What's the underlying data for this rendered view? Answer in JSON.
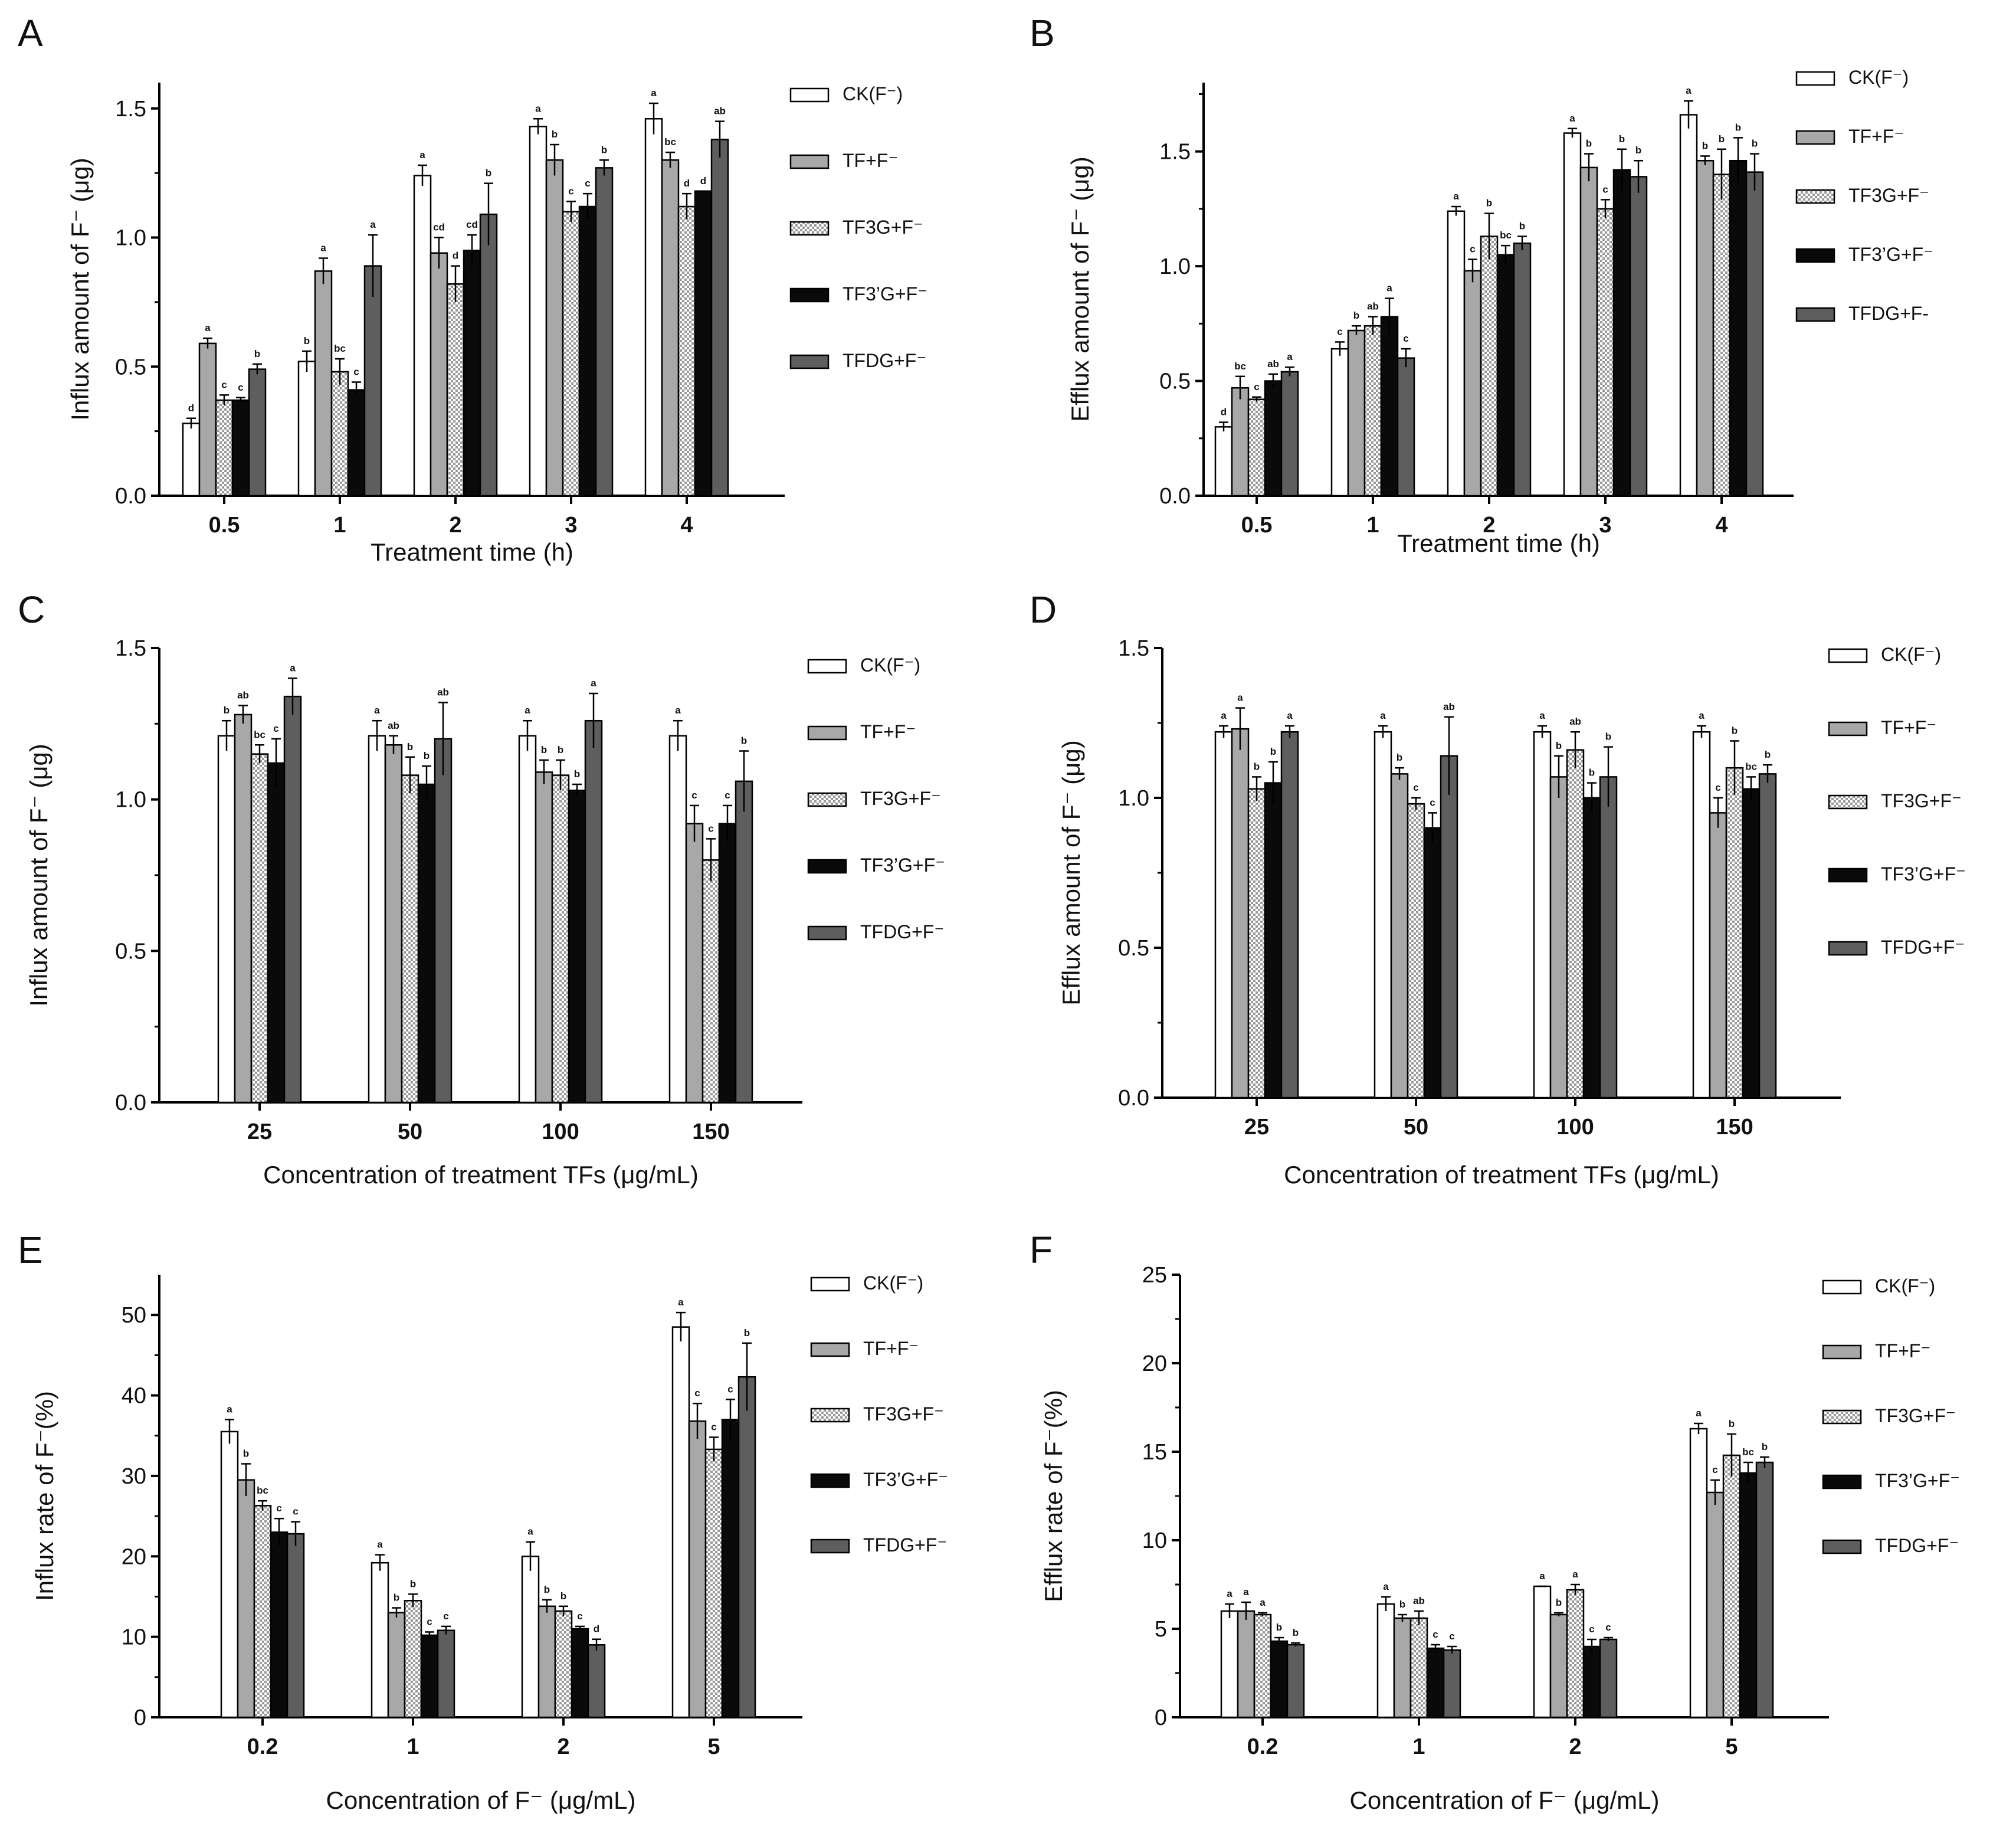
{
  "figure": {
    "colors": {
      "ck": "#ffffff",
      "tf": "#a8a8a8",
      "tf3g": "#dcdcdc",
      "tf3pg": "#0a0a0a",
      "tfdg": "#5e5e5e",
      "axis": "#000000"
    }
  },
  "chart_data": [
    {
      "panel": "A",
      "type": "bar",
      "ylabel": "Influx amount of F⁻ (μg)",
      "xlabel": "Treatment time (h)",
      "categories": [
        "0.5",
        "1",
        "2",
        "3",
        "4"
      ],
      "ylim": [
        0,
        1.6
      ],
      "yticks": [
        0,
        0.5,
        1,
        1.5
      ],
      "ytick_labels": [
        "0.0",
        "0.5",
        "1.0",
        "1.5"
      ],
      "series": [
        {
          "name": "CK(F⁻)",
          "key": "ck",
          "values": [
            0.28,
            0.52,
            1.24,
            1.43,
            1.46
          ],
          "errors": [
            0.02,
            0.04,
            0.04,
            0.03,
            0.06
          ],
          "sig": [
            "d",
            "b",
            "a",
            "a",
            "a"
          ]
        },
        {
          "name": "TF+F⁻",
          "key": "tf",
          "values": [
            0.59,
            0.87,
            0.94,
            1.3,
            1.3
          ],
          "errors": [
            0.02,
            0.05,
            0.06,
            0.06,
            0.03
          ],
          "sig": [
            "a",
            "a",
            "cd",
            "b",
            "bc"
          ]
        },
        {
          "name": "TF3G+F⁻",
          "key": "tf3g",
          "values": [
            0.37,
            0.48,
            0.82,
            1.1,
            1.12
          ],
          "errors": [
            0.02,
            0.05,
            0.07,
            0.04,
            0.05
          ],
          "sig": [
            "c",
            "bc",
            "d",
            "c",
            "d"
          ]
        },
        {
          "name": "TF3’G+F⁻",
          "key": "tf3pg",
          "values": [
            0.37,
            0.41,
            0.95,
            1.12,
            1.18
          ],
          "errors": [
            0.01,
            0.03,
            0.06,
            0.05,
            0.0
          ],
          "sig": [
            "c",
            "c",
            "cd",
            "c",
            "d"
          ]
        },
        {
          "name": "TFDG+F⁻",
          "key": "tfdg",
          "values": [
            0.49,
            0.89,
            1.09,
            1.27,
            1.38
          ],
          "errors": [
            0.02,
            0.12,
            0.12,
            0.03,
            0.07
          ],
          "sig": [
            "b",
            "a",
            "b",
            "b",
            "ab"
          ]
        }
      ]
    },
    {
      "panel": "B",
      "type": "bar",
      "ylabel": "Efflux amount of F⁻ (μg)",
      "xlabel": "Treatment time (h)",
      "categories": [
        "0.5",
        "1",
        "2",
        "3",
        "4"
      ],
      "ylim": [
        0,
        1.8
      ],
      "yticks": [
        0,
        0.5,
        1,
        1.5
      ],
      "ytick_labels": [
        "0.0",
        "0.5",
        "1.0",
        "1.5"
      ],
      "series": [
        {
          "name": "CK(F⁻)",
          "key": "ck",
          "values": [
            0.3,
            0.64,
            1.24,
            1.58,
            1.66
          ],
          "errors": [
            0.02,
            0.03,
            0.02,
            0.02,
            0.06
          ],
          "sig": [
            "d",
            "c",
            "a",
            "a",
            "a"
          ]
        },
        {
          "name": "TF+F⁻",
          "key": "tf",
          "values": [
            0.47,
            0.72,
            0.98,
            1.43,
            1.46
          ],
          "errors": [
            0.05,
            0.02,
            0.05,
            0.06,
            0.02
          ],
          "sig": [
            "bc",
            "b",
            "c",
            "b",
            "b"
          ]
        },
        {
          "name": "TF3G+F⁻",
          "key": "tf3g",
          "values": [
            0.42,
            0.74,
            1.13,
            1.25,
            1.4
          ],
          "errors": [
            0.01,
            0.04,
            0.1,
            0.04,
            0.11
          ],
          "sig": [
            "c",
            "ab",
            "b",
            "c",
            "b"
          ]
        },
        {
          "name": "TF3’G+F⁻",
          "key": "tf3pg",
          "values": [
            0.5,
            0.78,
            1.05,
            1.42,
            1.46
          ],
          "errors": [
            0.03,
            0.08,
            0.04,
            0.09,
            0.1
          ],
          "sig": [
            "ab",
            "a",
            "bc",
            "b",
            "b"
          ]
        },
        {
          "name": "TFDG+F-",
          "key": "tfdg",
          "values": [
            0.54,
            0.6,
            1.1,
            1.39,
            1.41
          ],
          "errors": [
            0.02,
            0.04,
            0.03,
            0.07,
            0.08
          ],
          "sig": [
            "a",
            "c",
            "b",
            "b",
            "b"
          ]
        }
      ]
    },
    {
      "panel": "C",
      "type": "bar",
      "ylabel": "Influx amount of F⁻ (μg)",
      "xlabel": "Concentration of treatment TFs (μg/mL)",
      "categories": [
        "25",
        "50",
        "100",
        "150"
      ],
      "ylim": [
        0,
        1.5
      ],
      "yticks": [
        0,
        0.5,
        1,
        1.5
      ],
      "ytick_labels": [
        "0.0",
        "0.5",
        "1.0",
        "1.5"
      ],
      "series": [
        {
          "name": "CK(F⁻)",
          "key": "ck",
          "values": [
            1.21,
            1.21,
            1.21,
            1.21
          ],
          "errors": [
            0.05,
            0.05,
            0.05,
            0.05
          ],
          "sig": [
            "b",
            "a",
            "a",
            "a"
          ]
        },
        {
          "name": "TF+F⁻",
          "key": "tf",
          "values": [
            1.28,
            1.18,
            1.09,
            0.92
          ],
          "errors": [
            0.03,
            0.03,
            0.04,
            0.06
          ],
          "sig": [
            "ab",
            "ab",
            "b",
            "c"
          ]
        },
        {
          "name": "TF3G+F⁻",
          "key": "tf3g",
          "values": [
            1.15,
            1.08,
            1.08,
            0.8
          ],
          "errors": [
            0.03,
            0.06,
            0.05,
            0.07
          ],
          "sig": [
            "bc",
            "b",
            "b",
            "c"
          ]
        },
        {
          "name": "TF3’G+F⁻",
          "key": "tf3pg",
          "values": [
            1.12,
            1.05,
            1.03,
            0.92
          ],
          "errors": [
            0.08,
            0.06,
            0.02,
            0.06
          ],
          "sig": [
            "c",
            "b",
            "b",
            "c"
          ]
        },
        {
          "name": "TFDG+F⁻",
          "key": "tfdg",
          "values": [
            1.34,
            1.2,
            1.26,
            1.06
          ],
          "errors": [
            0.06,
            0.12,
            0.09,
            0.1
          ],
          "sig": [
            "a",
            "ab",
            "a",
            "b"
          ]
        }
      ]
    },
    {
      "panel": "D",
      "type": "bar",
      "ylabel": "Efflux amount of F⁻ (μg)",
      "xlabel": "Concentration of treatment TFs (μg/mL)",
      "categories": [
        "25",
        "50",
        "100",
        "150"
      ],
      "ylim": [
        0,
        1.5
      ],
      "yticks": [
        0,
        0.5,
        1,
        1.5
      ],
      "ytick_labels": [
        "0.0",
        "0.5",
        "1.0",
        "1.5"
      ],
      "series": [
        {
          "name": "CK(F⁻)",
          "key": "ck",
          "values": [
            1.22,
            1.22,
            1.22,
            1.22
          ],
          "errors": [
            0.02,
            0.02,
            0.02,
            0.02
          ],
          "sig": [
            "a",
            "a",
            "a",
            "a"
          ]
        },
        {
          "name": "TF+F⁻",
          "key": "tf",
          "values": [
            1.23,
            1.08,
            1.07,
            0.95
          ],
          "errors": [
            0.07,
            0.02,
            0.07,
            0.05
          ],
          "sig": [
            "a",
            "b",
            "b",
            "c"
          ]
        },
        {
          "name": "TF3G+F⁻",
          "key": "tf3g",
          "values": [
            1.03,
            0.98,
            1.16,
            1.1
          ],
          "errors": [
            0.04,
            0.02,
            0.06,
            0.09
          ],
          "sig": [
            "b",
            "c",
            "ab",
            "b"
          ]
        },
        {
          "name": "TF3’G+F⁻",
          "key": "tf3pg",
          "values": [
            1.05,
            0.9,
            1.0,
            1.03
          ],
          "errors": [
            0.07,
            0.05,
            0.05,
            0.04
          ],
          "sig": [
            "b",
            "c",
            "b",
            "bc"
          ]
        },
        {
          "name": "TFDG+F⁻",
          "key": "tfdg",
          "values": [
            1.22,
            1.14,
            1.07,
            1.08
          ],
          "errors": [
            0.02,
            0.13,
            0.1,
            0.03
          ],
          "sig": [
            "a",
            "ab",
            "b",
            "b"
          ]
        }
      ]
    },
    {
      "panel": "E",
      "type": "bar",
      "ylabel": "Influx rate of F⁻(%)",
      "xlabel": "Concentration of F⁻ (μg/mL)",
      "categories": [
        "0.2",
        "1",
        "2",
        "5"
      ],
      "ylim": [
        0,
        55
      ],
      "yticks": [
        0,
        10,
        20,
        30,
        40,
        50
      ],
      "ytick_labels": [
        "0",
        "10",
        "20",
        "30",
        "40",
        "50"
      ],
      "series": [
        {
          "name": "CK(F⁻)",
          "key": "ck",
          "values": [
            35.5,
            19.2,
            20.0,
            48.5
          ],
          "errors": [
            1.5,
            1.0,
            1.8,
            1.8
          ],
          "sig": [
            "a",
            "a",
            "a",
            "a"
          ]
        },
        {
          "name": "TF+F⁻",
          "key": "tf",
          "values": [
            29.5,
            13.0,
            13.8,
            36.8
          ],
          "errors": [
            2.0,
            0.6,
            0.8,
            2.2
          ],
          "sig": [
            "b",
            "b",
            "b",
            "c"
          ]
        },
        {
          "name": "TF3G+F⁻",
          "key": "tf3g",
          "values": [
            26.3,
            14.5,
            13.2,
            33.3
          ],
          "errors": [
            0.6,
            0.8,
            0.6,
            1.5
          ],
          "sig": [
            "bc",
            "b",
            "b",
            "c"
          ]
        },
        {
          "name": "TF3’G+F⁻",
          "key": "tf3pg",
          "values": [
            23.0,
            10.2,
            11.0,
            37.0
          ],
          "errors": [
            1.7,
            0.4,
            0.3,
            2.5
          ],
          "sig": [
            "c",
            "c",
            "c",
            "c"
          ]
        },
        {
          "name": "TFDG+F⁻",
          "key": "tfdg",
          "values": [
            22.8,
            10.8,
            9.0,
            42.3
          ],
          "errors": [
            1.5,
            0.5,
            0.7,
            4.2
          ],
          "sig": [
            "c",
            "c",
            "d",
            "b"
          ]
        }
      ]
    },
    {
      "panel": "F",
      "type": "bar",
      "ylabel": "Efflux rate of F⁻(%)",
      "xlabel": "Concentration of F⁻ (μg/mL)",
      "categories": [
        "0.2",
        "1",
        "2",
        "5"
      ],
      "ylim": [
        0,
        25
      ],
      "yticks": [
        0,
        5,
        10,
        15,
        20,
        25
      ],
      "ytick_labels": [
        "0",
        "5",
        "10",
        "15",
        "20",
        "25"
      ],
      "series": [
        {
          "name": "CK(F⁻)",
          "key": "ck",
          "values": [
            6.0,
            6.4,
            7.4,
            16.3
          ],
          "errors": [
            0.4,
            0.4,
            0.0,
            0.3
          ],
          "sig": [
            "a",
            "a",
            "a",
            "a"
          ]
        },
        {
          "name": "TF+F⁻",
          "key": "tf",
          "values": [
            6.0,
            5.6,
            5.8,
            12.7
          ],
          "errors": [
            0.5,
            0.2,
            0.1,
            0.7
          ],
          "sig": [
            "a",
            "b",
            "b",
            "c"
          ]
        },
        {
          "name": "TF3G+F⁻",
          "key": "tf3g",
          "values": [
            5.8,
            5.6,
            7.2,
            14.8
          ],
          "errors": [
            0.1,
            0.4,
            0.3,
            1.2
          ],
          "sig": [
            "a",
            "ab",
            "a",
            "b"
          ]
        },
        {
          "name": "TF3’G+F⁻",
          "key": "tf3pg",
          "values": [
            4.3,
            3.9,
            4.0,
            13.8
          ],
          "errors": [
            0.2,
            0.2,
            0.4,
            0.6
          ],
          "sig": [
            "b",
            "c",
            "c",
            "bc"
          ]
        },
        {
          "name": "TFDG+F⁻",
          "key": "tfdg",
          "values": [
            4.1,
            3.8,
            4.4,
            14.4
          ],
          "errors": [
            0.1,
            0.2,
            0.1,
            0.3
          ],
          "sig": [
            "b",
            "c",
            "c",
            "b"
          ]
        }
      ]
    }
  ]
}
